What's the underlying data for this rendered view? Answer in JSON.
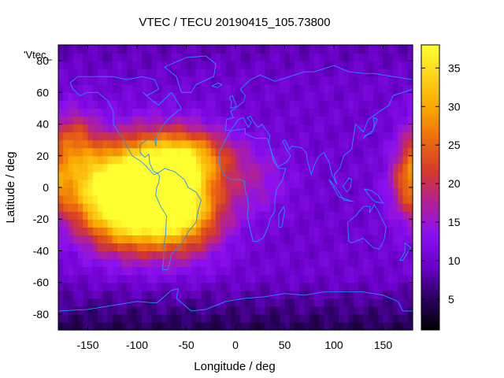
{
  "chart_data": {
    "type": "heatmap",
    "title": "VTEC / TECU 20190415_105.73800",
    "xlabel": "Longitude / deg",
    "ylabel": "Latitude / deg",
    "xlim": [
      -180,
      180
    ],
    "ylim": [
      -90,
      90
    ],
    "xticks": [
      -150,
      -100,
      -50,
      0,
      50,
      100,
      150
    ],
    "yticks": [
      -80,
      -60,
      -40,
      -20,
      0,
      20,
      40,
      60,
      80
    ],
    "colorbar": {
      "range": [
        1,
        38
      ],
      "ticks": [
        5,
        10,
        15,
        20,
        25,
        30,
        35
      ],
      "palette": [
        "#000000",
        "#2a0060",
        "#6a00c8",
        "#8a10f0",
        "#b0209a",
        "#d43a2a",
        "#ec6a10",
        "#f8a800",
        "#ffd21a",
        "#ffff30"
      ]
    },
    "series_label": "'Vtec_",
    "coastline_color": "#1e90ff",
    "peaks": [
      {
        "lon": -88,
        "lat": 4,
        "vtec": 37,
        "spread_lon": 35,
        "spread_lat": 20
      },
      {
        "lon": -55,
        "lat": -15,
        "vtec": 31,
        "spread_lon": 30,
        "spread_lat": 18
      },
      {
        "lon": -140,
        "lat": 0,
        "vtec": 29,
        "spread_lon": 30,
        "spread_lat": 18
      },
      {
        "lon": -45,
        "lat": 20,
        "vtec": 25,
        "spread_lon": 30,
        "spread_lat": 12
      },
      {
        "lon": -165,
        "lat": 30,
        "vtec": 21,
        "spread_lon": 16,
        "spread_lat": 14
      },
      {
        "lon": -110,
        "lat": -25,
        "vtec": 22,
        "spread_lon": 30,
        "spread_lat": 14
      },
      {
        "lon": 175,
        "lat": 5,
        "vtec": 20,
        "spread_lon": 12,
        "spread_lat": 14
      },
      {
        "lon": 20,
        "lat": 5,
        "vtec": 15,
        "spread_lon": 25,
        "spread_lat": 15
      }
    ],
    "background_vtec": 10
  }
}
